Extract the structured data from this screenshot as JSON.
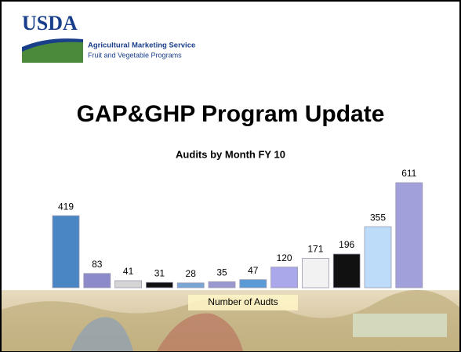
{
  "header": {
    "logo": "USDA",
    "agency": "Agricultural Marketing Service",
    "program": "Fruit and Vegetable Programs",
    "title": "GAP&GHP Program Update"
  },
  "chart_data": {
    "type": "bar",
    "title": "Audits by Month FY 10",
    "xlabel": "Number of Audts",
    "categories": [
      null,
      null,
      null,
      null,
      null,
      null,
      null,
      null,
      null,
      null,
      null,
      null
    ],
    "values": [
      419,
      83,
      41,
      31,
      28,
      35,
      47,
      120,
      171,
      196,
      355,
      611
    ],
    "colors": [
      "#4a86c4",
      "#8c8ac8",
      "#d4d4d4",
      "#111111",
      "#7aa6d6",
      "#9a98d0",
      "#5a9ad6",
      "#aaa8ea",
      "#f2f2f2",
      "#111111",
      "#bcdcfa",
      "#a2a0da"
    ]
  }
}
